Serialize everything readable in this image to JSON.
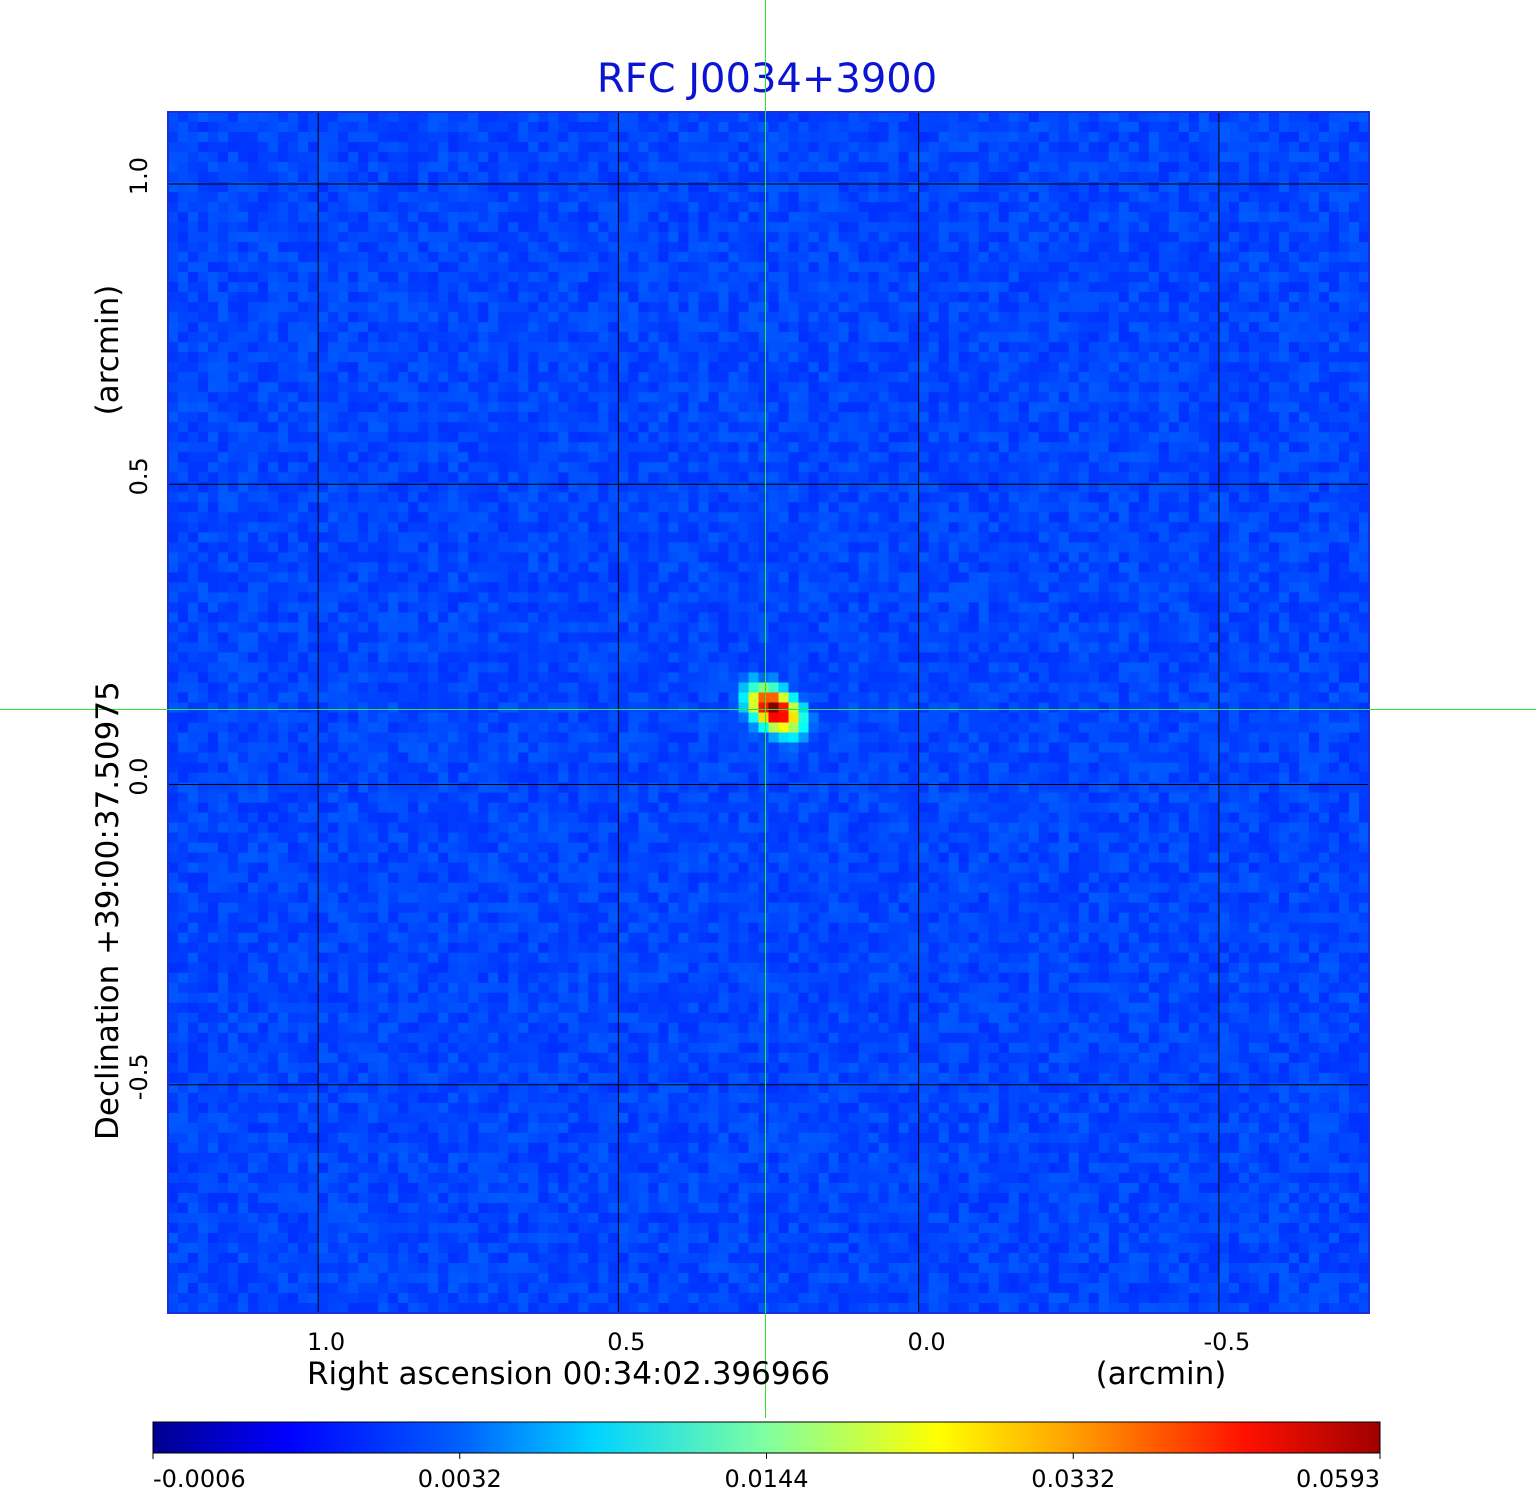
{
  "chart_data": {
    "type": "heatmap",
    "title": "RFC J0034+3900",
    "xlabel": "Right ascension  00:34:02.396966",
    "xunit": "(arcmin)",
    "ylabel": "Declination  +39:00:37.50975",
    "yunit": "(arcmin)",
    "xlim": [
      1.25,
      -0.75
    ],
    "ylim": [
      -0.88,
      1.12
    ],
    "x_ticks": [
      1.0,
      0.5,
      0.0,
      -0.5
    ],
    "x_tick_labels": [
      "1.0",
      "0.5",
      "0.0",
      "-0.5"
    ],
    "y_ticks": [
      1.0,
      0.5,
      0.0,
      -0.5
    ],
    "y_tick_labels": [
      "1.0",
      "0.5",
      "0.0",
      "-0.5"
    ],
    "grid": true,
    "crosshair": {
      "x": 0.255,
      "y": 0.125
    },
    "source_peak": {
      "x": 0.24,
      "y": 0.125,
      "value": 0.0593
    },
    "colormap": "jet",
    "colorbar": {
      "min": -0.0006,
      "max": 0.0593,
      "tick_labels": [
        "-0.0006",
        "0.0032",
        "0.0144",
        "0.0332",
        "0.0593"
      ],
      "tick_fractions": [
        0.0,
        0.25,
        0.5,
        0.75,
        1.0
      ]
    },
    "background_level": 0.0006
  },
  "colors": {
    "title": "#0a14d2",
    "crosshair": "#2ee82e",
    "grid": "#000000",
    "axis_text": "#000000"
  }
}
